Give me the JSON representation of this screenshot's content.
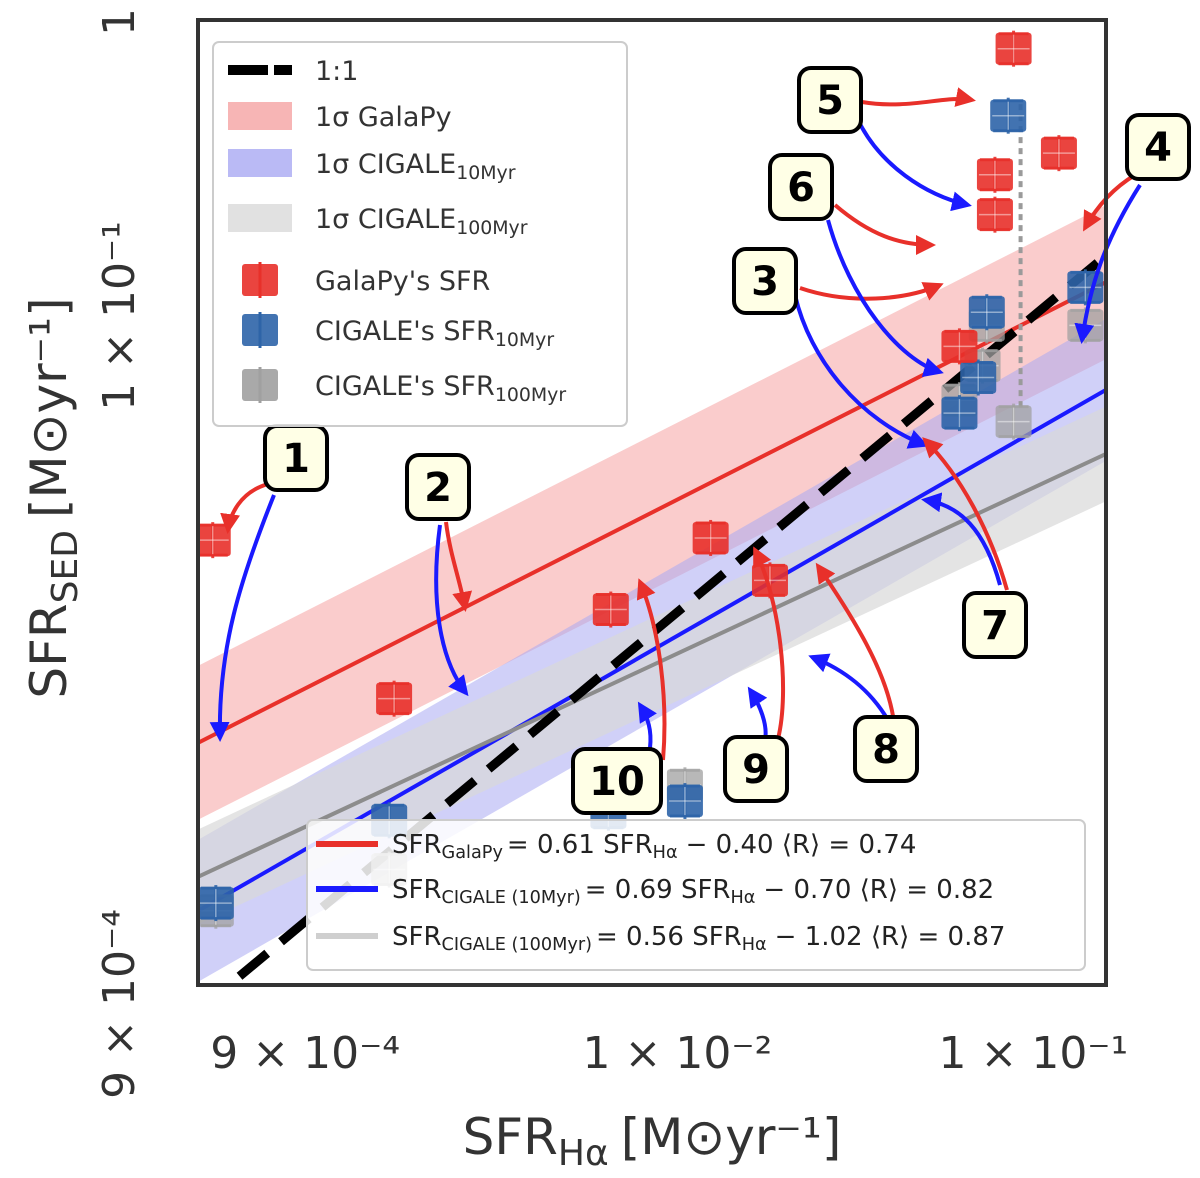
{
  "chart_data": {
    "type": "scatter",
    "x_scale": "log",
    "y_scale": "log",
    "xlim": [
      0.00045,
      0.16
    ],
    "ylim": [
      0.00055,
      1.0
    ],
    "xlabel": {
      "main": "SFR",
      "sub": "Hα",
      "unit": "[M⊙yr⁻¹]"
    },
    "ylabel": {
      "main": "SFR",
      "sub": "SED",
      "unit": "[M⊙yr⁻¹]"
    },
    "x_ticks": [
      {
        "value": 0.0009,
        "label": "9 × 10⁻⁴"
      },
      {
        "value": 0.01,
        "label": "1 × 10⁻²"
      },
      {
        "value": 0.1,
        "label": "1 × 10⁻¹"
      }
    ],
    "y_ticks": [
      {
        "value": 0.0009,
        "label": "9 × 10⁻⁴"
      },
      {
        "value": 0.1,
        "label": "1 × 10⁻¹"
      },
      {
        "value": 1.0,
        "label": "1"
      }
    ],
    "legend": {
      "position": "top-left",
      "entries": [
        {
          "key": "one_to_one",
          "label": "1:1",
          "sub": "",
          "color": "#000000",
          "kind": "dashed-line"
        },
        {
          "key": "band_galapy",
          "label": "1σ GalaPy",
          "sub": "",
          "color": "#f5a3a3",
          "kind": "band"
        },
        {
          "key": "band_cigale10",
          "label": "1σ CIGALE",
          "sub": "10Myr",
          "color": "#a9a9f2",
          "kind": "band"
        },
        {
          "key": "band_cigale100",
          "label": "1σ CIGALE",
          "sub": "100Myr",
          "color": "#d9d9d9",
          "kind": "band"
        },
        {
          "key": "pts_galapy",
          "label": "GalaPy's SFR",
          "sub": "",
          "color": "#e8302a",
          "kind": "marker"
        },
        {
          "key": "pts_cigale10",
          "label": "CIGALE's SFR",
          "sub": "10Myr",
          "color": "#2e64a8",
          "kind": "marker"
        },
        {
          "key": "pts_cigale100",
          "label": "CIGALE's SFR",
          "sub": "100Myr",
          "color": "#a0a0a0",
          "kind": "marker"
        }
      ]
    },
    "fits": [
      {
        "name": "GalaPy",
        "color": "#e8302a",
        "slope": 0.61,
        "intercept": -0.4,
        "R": 0.74,
        "lhs_sub": "GalaPy",
        "text": "= 0.61 SFR",
        "tail": "− 0.40  ⟨R⟩ = 0.74"
      },
      {
        "name": "CIGALE (10Myr)",
        "color": "#1a1aff",
        "slope": 0.69,
        "intercept": -0.7,
        "R": 0.82,
        "lhs_sub": "CIGALE (10Myr)",
        "text": "= 0.69 SFR",
        "tail": "− 0.70  ⟨R⟩ = 0.82"
      },
      {
        "name": "CIGALE (100Myr)",
        "color": "#8c8c8c",
        "slope": 0.56,
        "intercept": -1.02,
        "R": 0.87,
        "lhs_sub": "CIGALE (100Myr)",
        "text": "= 0.56 SFR",
        "tail": "− 1.02  ⟨R⟩ = 0.87"
      }
    ],
    "fit_legend_lhs": "SFR",
    "fit_legend_rhs_sub": "Hα",
    "series": [
      {
        "name": "GalaPy's SFR",
        "color": "#e8302a",
        "points": [
          {
            "id": "1",
            "x": 0.000495,
            "y": 0.0175
          },
          {
            "id": "2",
            "x": 0.0016,
            "y": 0.0051
          },
          {
            "id": "3",
            "x": 0.078,
            "y": 0.22
          },
          {
            "id": "4",
            "x": 0.118,
            "y": 0.355
          },
          {
            "id": "5",
            "x": 0.088,
            "y": 0.8
          },
          {
            "id": "6",
            "x": 0.078,
            "y": 0.3
          },
          {
            "id": "7",
            "x": 0.062,
            "y": 0.079
          },
          {
            "id": "8",
            "x": 0.0182,
            "y": 0.0128
          },
          {
            "id": "9",
            "x": 0.0124,
            "y": 0.0178
          },
          {
            "id": "10",
            "x": 0.0065,
            "y": 0.0102
          }
        ]
      },
      {
        "name": "CIGALE's SFR10Myr",
        "color": "#2e64a8",
        "points": [
          {
            "id": "1",
            "x": 0.000505,
            "y": 0.00104
          },
          {
            "id": "2",
            "x": 0.00155,
            "y": 0.00198
          },
          {
            "id": "3",
            "x": 0.07,
            "y": 0.062
          },
          {
            "id": "4",
            "x": 0.14,
            "y": 0.125
          },
          {
            "id": "5",
            "x": 0.085,
            "y": 0.475
          },
          {
            "id": "6",
            "x": 0.074,
            "y": 0.103
          },
          {
            "id": "7",
            "x": 0.062,
            "y": 0.047
          },
          {
            "id": "8",
            "x": 0.0162,
            "y": 0.0031
          },
          {
            "id": "9",
            "x": 0.0105,
            "y": 0.0023
          },
          {
            "id": "10",
            "x": 0.0064,
            "y": 0.0021
          }
        ]
      },
      {
        "name": "CIGALE's SFR100Myr",
        "color": "#a0a0a0",
        "points": [
          {
            "id": "1",
            "x": 0.000505,
            "y": 0.00098
          },
          {
            "id": "2",
            "x": 0.00155,
            "y": 0.00135
          },
          {
            "id": "3",
            "x": 0.072,
            "y": 0.068
          },
          {
            "id": "4",
            "x": 0.14,
            "y": 0.093
          },
          {
            "id": "5",
            "x": 0.088,
            "y": 0.044
          },
          {
            "id": "6",
            "x": 0.074,
            "y": 0.093
          },
          {
            "id": "7",
            "x": 0.062,
            "y": 0.052
          },
          {
            "id": "8",
            "x": 0.0162,
            "y": 0.0033
          },
          {
            "id": "9",
            "x": 0.0105,
            "y": 0.0026
          },
          {
            "id": "10",
            "x": 0.0064,
            "y": 0.0025
          }
        ]
      }
    ],
    "annotations": [
      "1",
      "2",
      "3",
      "4",
      "5",
      "6",
      "7",
      "8",
      "9",
      "10"
    ]
  }
}
